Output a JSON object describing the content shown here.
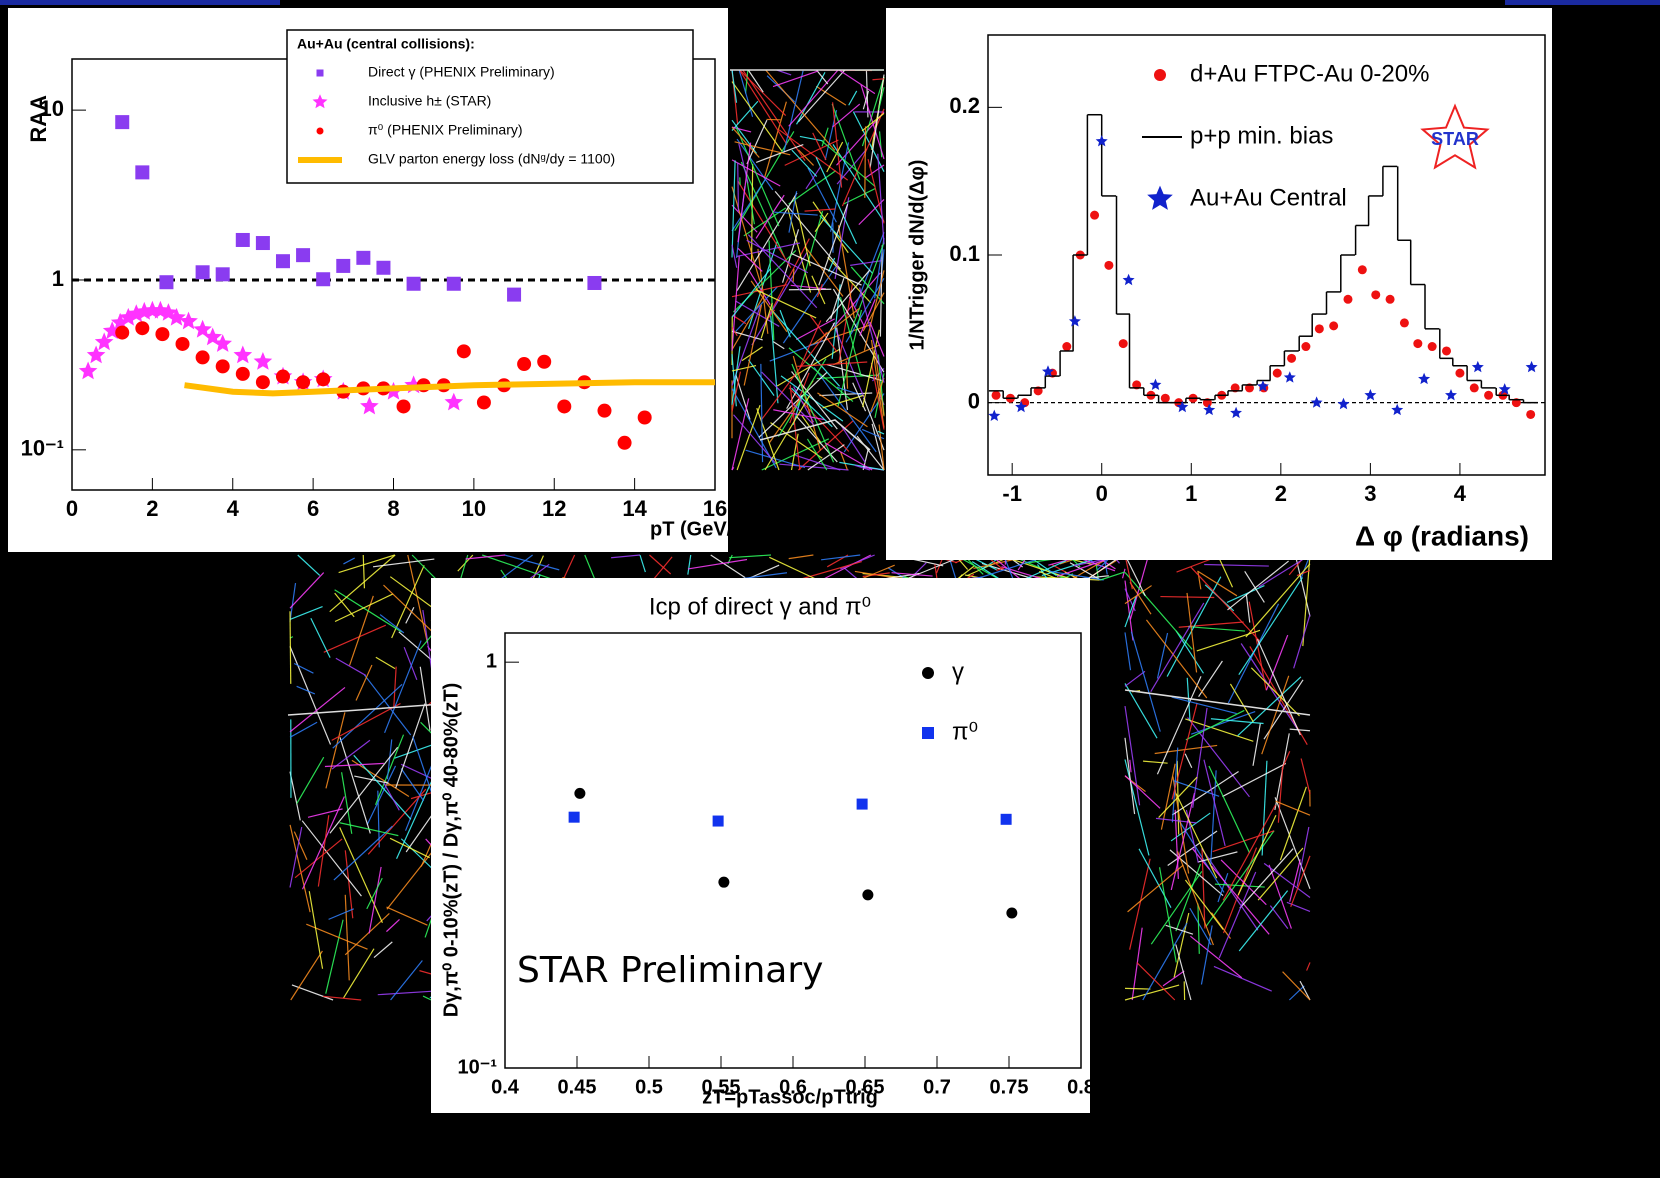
{
  "chart_data": [
    {
      "type": "scatter",
      "y_scale": "log",
      "y_label": "RAA",
      "x_label": "pT (GeV/c)",
      "legend_title": "Au+Au (central collisions):",
      "reference_line": 1,
      "xlim": [
        0,
        16
      ],
      "ylim": [
        0.058,
        20
      ],
      "xticks": [
        0,
        2,
        4,
        6,
        8,
        10,
        12,
        14,
        16
      ],
      "yticks": [
        {
          "value": 0.1,
          "label": "10⁻¹"
        },
        1,
        10
      ],
      "series": [
        {
          "name": "Direct γ (PHENIX Preliminary)",
          "color": "#8a3cf0",
          "marker": "square",
          "x": [
            1.25,
            1.75,
            2.35,
            3.25,
            3.75,
            4.25,
            4.75,
            5.25,
            5.75,
            6.25,
            6.75,
            7.25,
            7.75,
            8.5,
            9.5,
            11,
            13
          ],
          "values": [
            8.5,
            4.3,
            0.97,
            1.11,
            1.08,
            1.72,
            1.65,
            1.29,
            1.4,
            1.01,
            1.21,
            1.35,
            1.18,
            0.95,
            0.95,
            0.82,
            0.96
          ]
        },
        {
          "name": "Inclusive h± (STAR)",
          "color": "#ff33ff",
          "marker": "star",
          "x": [
            0.4,
            0.6,
            0.8,
            1.0,
            1.2,
            1.4,
            1.6,
            1.8,
            2.0,
            2.2,
            2.4,
            2.6,
            2.9,
            3.25,
            3.5,
            3.75,
            4.25,
            4.75,
            5.25,
            5.75,
            6.25,
            6.75,
            7.4,
            8.0,
            8.5,
            9.5
          ],
          "values": [
            0.29,
            0.36,
            0.43,
            0.5,
            0.56,
            0.6,
            0.63,
            0.65,
            0.66,
            0.66,
            0.64,
            0.6,
            0.57,
            0.51,
            0.46,
            0.42,
            0.36,
            0.33,
            0.27,
            0.25,
            0.26,
            0.22,
            0.18,
            0.22,
            0.24,
            0.19
          ]
        },
        {
          "name": "π⁰ (PHENIX Preliminary)",
          "color": "#ff0000",
          "marker": "circle",
          "x": [
            1.25,
            1.75,
            2.25,
            2.75,
            3.25,
            3.75,
            4.25,
            4.75,
            5.25,
            5.75,
            6.25,
            6.75,
            7.25,
            7.75,
            8.25,
            8.75,
            9.25,
            9.75,
            10.25,
            10.75,
            11.25,
            11.75,
            12.25,
            12.75,
            13.25,
            13.75,
            14.25
          ],
          "values": [
            0.49,
            0.52,
            0.48,
            0.42,
            0.35,
            0.31,
            0.28,
            0.25,
            0.27,
            0.25,
            0.26,
            0.22,
            0.23,
            0.23,
            0.18,
            0.24,
            0.24,
            0.38,
            0.19,
            0.24,
            0.32,
            0.33,
            0.18,
            0.25,
            0.17,
            0.11,
            0.155
          ]
        },
        {
          "name": "GLV parton energy loss (dNᵍ/dy = 1100)",
          "color": "#ffbb00",
          "marker": "line",
          "x": [
            2.8,
            4,
            5,
            6,
            7,
            8,
            10,
            12,
            14,
            16
          ],
          "values": [
            0.24,
            0.22,
            0.215,
            0.22,
            0.225,
            0.23,
            0.24,
            0.245,
            0.25,
            0.25
          ]
        }
      ]
    },
    {
      "type": "scatter",
      "y_label": "1/NTrigger dN/d(Δφ)",
      "x_label": "Δ φ (radians)",
      "annotation": "STAR",
      "reference_line": 0,
      "xlim": [
        -1.27,
        4.95
      ],
      "ylim": [
        -0.049,
        0.249
      ],
      "xticks": [
        -1,
        0,
        1,
        2,
        3,
        4
      ],
      "yticks": [
        0,
        0.1,
        0.2
      ],
      "series": [
        {
          "name": "d+Au FTPC-Au 0-20%",
          "color": "#ee1111",
          "marker": "circle",
          "x": [
            -1.18,
            -1.02,
            -0.86,
            -0.71,
            -0.55,
            -0.39,
            -0.24,
            -0.08,
            0.08,
            0.24,
            0.39,
            0.55,
            0.71,
            0.86,
            1.02,
            1.18,
            1.34,
            1.49,
            1.65,
            1.81,
            1.96,
            2.12,
            2.28,
            2.43,
            2.59,
            2.75,
            2.91,
            3.06,
            3.22,
            3.38,
            3.53,
            3.69,
            3.85,
            4.0,
            4.16,
            4.32,
            4.48,
            4.63,
            4.79
          ],
          "values": [
            0.005,
            0.003,
            0.0,
            0.008,
            0.02,
            0.038,
            0.1,
            0.127,
            0.093,
            0.04,
            0.012,
            0.005,
            0.003,
            0.0,
            0.003,
            0.0,
            0.005,
            0.01,
            0.01,
            0.01,
            0.02,
            0.03,
            0.038,
            0.05,
            0.052,
            0.07,
            0.09,
            0.073,
            0.07,
            0.054,
            0.04,
            0.038,
            0.035,
            0.02,
            0.01,
            0.005,
            0.005,
            0.0,
            -0.008
          ]
        },
        {
          "name": "p+p min. bias",
          "color": "#000000",
          "marker": "step",
          "x": [
            -1.18,
            -1.02,
            -0.86,
            -0.71,
            -0.55,
            -0.39,
            -0.24,
            -0.08,
            0.08,
            0.24,
            0.39,
            0.55,
            0.71,
            0.86,
            1.02,
            1.18,
            1.34,
            1.49,
            1.65,
            1.81,
            1.96,
            2.12,
            2.28,
            2.43,
            2.59,
            2.75,
            2.91,
            3.06,
            3.22,
            3.38,
            3.53,
            3.69,
            3.85,
            4.0,
            4.16,
            4.32,
            4.48,
            4.63,
            4.79
          ],
          "values": [
            0.008,
            0.003,
            0.005,
            0.01,
            0.018,
            0.035,
            0.1,
            0.195,
            0.14,
            0.06,
            0.01,
            0.005,
            0.0,
            0.0,
            0.003,
            0.002,
            0.005,
            0.008,
            0.012,
            0.015,
            0.025,
            0.035,
            0.045,
            0.06,
            0.075,
            0.1,
            0.12,
            0.14,
            0.16,
            0.11,
            0.08,
            0.05,
            0.03,
            0.025,
            0.015,
            0.01,
            0.005,
            0.002,
            0.0
          ]
        },
        {
          "name": "Au+Au Central",
          "color": "#1122cc",
          "marker": "star",
          "x": [
            -1.2,
            -0.9,
            -0.6,
            -0.3,
            0,
            0.3,
            0.6,
            0.9,
            1.2,
            1.5,
            1.8,
            2.1,
            2.4,
            2.7,
            3.0,
            3.3,
            3.6,
            3.9,
            4.2,
            4.5,
            4.8
          ],
          "values": [
            -0.009,
            -0.003,
            0.021,
            0.055,
            0.177,
            0.083,
            0.012,
            -0.003,
            -0.005,
            -0.007,
            0.011,
            0.017,
            0.0,
            -0.001,
            0.005,
            -0.005,
            0.016,
            0.005,
            0.024,
            0.009,
            0.024
          ]
        }
      ]
    },
    {
      "type": "scatter",
      "y_scale": "log",
      "title": "Icp of direct γ and π⁰",
      "y_label": "Dγ,π⁰ 0-10%(zT) / Dγ,π⁰ 40-80%(zT)",
      "x_label": "zT=pTassoc/pTtrig",
      "annotation": "STAR Preliminary",
      "xlim": [
        0.4,
        0.8
      ],
      "ylim": [
        0.1,
        1.18
      ],
      "xticks": [
        0.4,
        0.45,
        0.5,
        0.55,
        0.6,
        0.65,
        0.7,
        0.75,
        0.8
      ],
      "yticks": [
        {
          "value": 0.1,
          "label": "10⁻¹"
        },
        1
      ],
      "series": [
        {
          "name": "γ",
          "color": "#000000",
          "marker": "circle",
          "x": [
            0.452,
            0.552,
            0.652,
            0.752
          ],
          "values": [
            0.475,
            0.287,
            0.267,
            0.241
          ]
        },
        {
          "name": "π⁰",
          "color": "#1133ee",
          "marker": "square",
          "x": [
            0.448,
            0.548,
            0.648,
            0.748
          ],
          "values": [
            0.415,
            0.406,
            0.447,
            0.41
          ]
        }
      ]
    }
  ]
}
